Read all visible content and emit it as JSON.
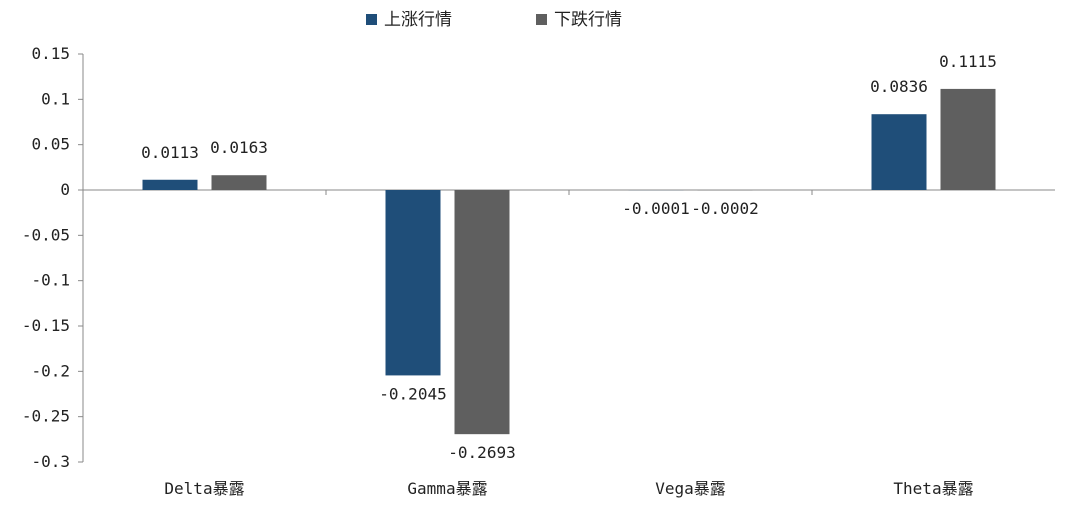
{
  "chart_data": {
    "type": "bar",
    "categories": [
      "Delta暴露",
      "Gamma暴露",
      "Vega暴露",
      "Theta暴露"
    ],
    "series": [
      {
        "name": "上涨行情",
        "color": "#1f4e79",
        "values": [
          0.0113,
          -0.2045,
          -0.0001,
          0.0836
        ],
        "labels": [
          "0.0113",
          "-0.2045",
          "-0.0001",
          "0.0836"
        ]
      },
      {
        "name": "下跌行情",
        "color": "#5f5f5f",
        "values": [
          0.0163,
          -0.2693,
          -0.0002,
          0.1115
        ],
        "labels": [
          "0.0163",
          "-0.2693",
          "-0.0002",
          "0.1115"
        ]
      }
    ],
    "ylim": [
      -0.3,
      0.15
    ],
    "yticks": [
      0.15,
      0.1,
      0.05,
      0,
      -0.05,
      -0.1,
      -0.15,
      -0.2,
      -0.25,
      -0.3
    ],
    "ytick_labels": [
      "0.15",
      "0.1",
      "0.05",
      "0",
      "-0.05",
      "-0.1",
      "-0.15",
      "-0.2",
      "-0.25",
      "-0.3"
    ],
    "legend_position": "top-center",
    "grid": false
  }
}
